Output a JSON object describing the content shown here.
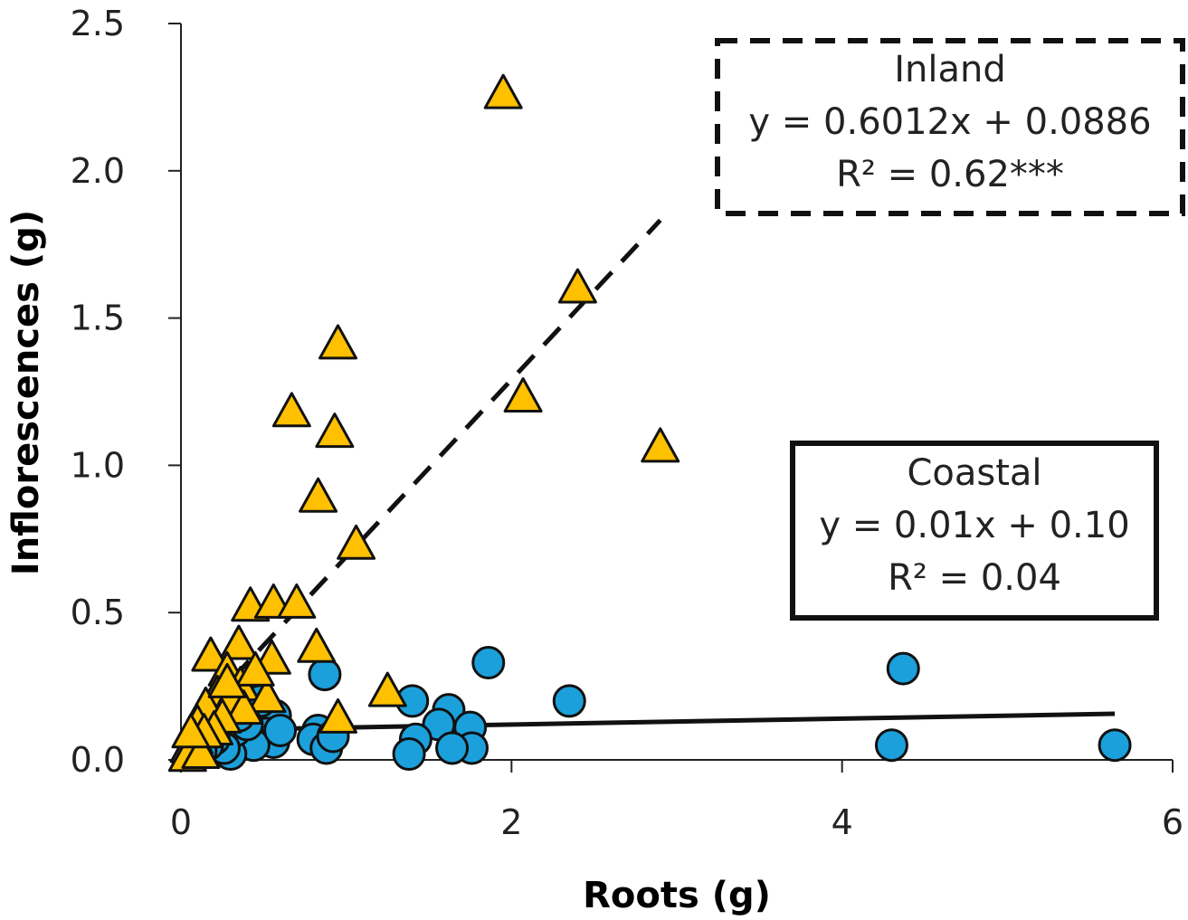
{
  "chart_data": {
    "type": "scatter",
    "xlabel": "Roots (g)",
    "ylabel": "Inflorescences (g)",
    "xlim": [
      0,
      6
    ],
    "ylim": [
      0,
      2.5
    ],
    "x_ticks": [
      "0",
      "2",
      "4",
      "6"
    ],
    "y_ticks": [
      "0.0",
      "0.5",
      "1.0",
      "1.5",
      "2.0",
      "2.5"
    ],
    "grid": false,
    "series": [
      {
        "name": "Inland",
        "marker": "triangle",
        "color": "#FFC000",
        "points": [
          [
            1.95,
            2.26
          ],
          [
            2.4,
            1.6
          ],
          [
            0.95,
            1.41
          ],
          [
            0.67,
            1.18
          ],
          [
            0.93,
            1.11
          ],
          [
            2.07,
            1.23
          ],
          [
            2.9,
            1.06
          ],
          [
            0.83,
            0.89
          ],
          [
            1.06,
            0.73
          ],
          [
            0.42,
            0.52
          ],
          [
            0.56,
            0.53
          ],
          [
            0.7,
            0.53
          ],
          [
            0.35,
            0.39
          ],
          [
            0.55,
            0.34
          ],
          [
            0.82,
            0.38
          ],
          [
            1.25,
            0.23
          ],
          [
            0.18,
            0.35
          ],
          [
            0.28,
            0.3
          ],
          [
            0.36,
            0.25
          ],
          [
            0.22,
            0.22
          ],
          [
            0.52,
            0.21
          ],
          [
            0.3,
            0.2
          ],
          [
            0.15,
            0.18
          ],
          [
            0.38,
            0.17
          ],
          [
            0.25,
            0.14
          ],
          [
            0.95,
            0.14
          ],
          [
            0.1,
            0.12
          ],
          [
            0.2,
            0.1
          ],
          [
            0.08,
            0.07
          ],
          [
            0.14,
            0.09
          ],
          [
            0.05,
            0.04
          ],
          [
            0.1,
            0.03
          ],
          [
            0.04,
            0.01
          ],
          [
            0.12,
            0.02
          ],
          [
            0.45,
            0.3
          ],
          [
            0.28,
            0.26
          ],
          [
            0.06,
            0.09
          ]
        ]
      },
      {
        "name": "Coastal",
        "marker": "circle",
        "color": "#1CA0DB",
        "points": [
          [
            1.86,
            0.33
          ],
          [
            2.35,
            0.2
          ],
          [
            4.37,
            0.31
          ],
          [
            4.3,
            0.05
          ],
          [
            5.65,
            0.05
          ],
          [
            0.87,
            0.29
          ],
          [
            1.4,
            0.2
          ],
          [
            1.62,
            0.17
          ],
          [
            1.56,
            0.12
          ],
          [
            1.75,
            0.11
          ],
          [
            1.76,
            0.04
          ],
          [
            1.64,
            0.04
          ],
          [
            1.42,
            0.07
          ],
          [
            1.38,
            0.02
          ],
          [
            0.83,
            0.1
          ],
          [
            0.8,
            0.07
          ],
          [
            0.88,
            0.04
          ],
          [
            0.92,
            0.08
          ],
          [
            0.57,
            0.15
          ],
          [
            0.52,
            0.09
          ],
          [
            0.56,
            0.06
          ],
          [
            0.48,
            0.2
          ],
          [
            0.44,
            0.05
          ],
          [
            0.3,
            0.02
          ],
          [
            0.33,
            0.1
          ],
          [
            0.26,
            0.04
          ],
          [
            0.2,
            0.07
          ],
          [
            0.16,
            0.05
          ],
          [
            0.12,
            0.03
          ],
          [
            0.4,
            0.12
          ],
          [
            0.35,
            0.15
          ],
          [
            0.6,
            0.1
          ],
          [
            0.22,
            0.12
          ],
          [
            0.1,
            0.08
          ]
        ]
      }
    ],
    "trendlines": [
      {
        "series": "Inland",
        "slope": 0.6012,
        "intercept": 0.0886,
        "x_range": [
          0.0,
          2.9
        ],
        "style": "dashed"
      },
      {
        "series": "Coastal",
        "slope": 0.01,
        "intercept": 0.1,
        "x_range": [
          0.0,
          5.65
        ],
        "style": "solid"
      }
    ],
    "annotations": [
      {
        "series": "Inland",
        "border": "dashed",
        "lines": [
          "Inland",
          "y = 0.6012x + 0.0886",
          "R² = 0.62***"
        ]
      },
      {
        "series": "Coastal",
        "border": "solid",
        "lines": [
          "Coastal",
          "y = 0.01x + 0.10",
          "R² = 0.04"
        ]
      }
    ]
  }
}
